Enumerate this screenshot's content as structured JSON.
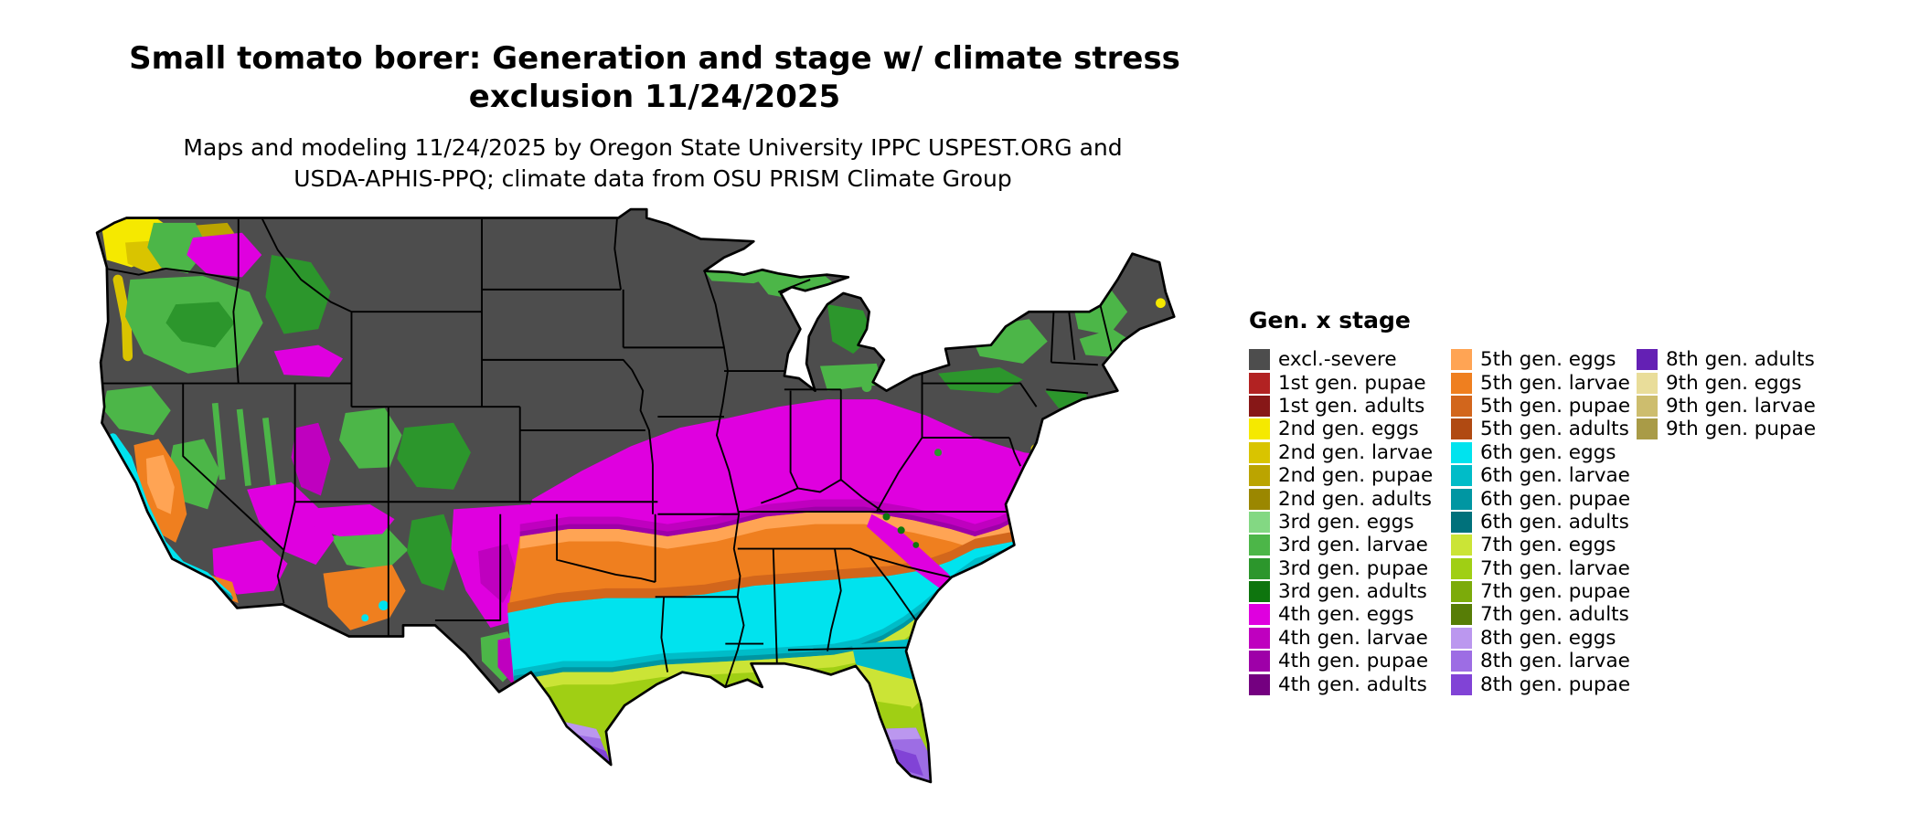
{
  "title": {
    "line1": "Small tomato borer: Generation and stage w/ climate stress",
    "line2": "exclusion 11/24/2025"
  },
  "subtitle": {
    "line1": "Maps and modeling 11/24/2025 by Oregon State University IPPC USPEST.ORG and",
    "line2": "USDA-APHIS-PPQ; climate data from OSU PRISM Climate Group"
  },
  "legend": {
    "title": "Gen. x stage",
    "columns": [
      [
        {
          "label": "excl.-severe",
          "key": "excl_severe"
        },
        {
          "label": "1st gen. pupae",
          "key": "g1_pupae"
        },
        {
          "label": "1st gen. adults",
          "key": "g1_adults"
        },
        {
          "label": "2nd gen. eggs",
          "key": "g2_eggs"
        },
        {
          "label": "2nd gen. larvae",
          "key": "g2_larvae"
        },
        {
          "label": "2nd gen. pupae",
          "key": "g2_pupae"
        },
        {
          "label": "2nd gen. adults",
          "key": "g2_adults"
        },
        {
          "label": "3rd gen. eggs",
          "key": "g3_eggs"
        },
        {
          "label": "3rd gen. larvae",
          "key": "g3_larvae"
        },
        {
          "label": "3rd gen. pupae",
          "key": "g3_pupae"
        },
        {
          "label": "3rd gen. adults",
          "key": "g3_adults"
        },
        {
          "label": "4th gen. eggs",
          "key": "g4_eggs"
        },
        {
          "label": "4th gen. larvae",
          "key": "g4_larvae"
        },
        {
          "label": "4th gen. pupae",
          "key": "g4_pupae"
        },
        {
          "label": "4th gen. adults",
          "key": "g4_adults"
        }
      ],
      [
        {
          "label": "5th gen. eggs",
          "key": "g5_eggs"
        },
        {
          "label": "5th gen. larvae",
          "key": "g5_larvae"
        },
        {
          "label": "5th gen. pupae",
          "key": "g5_pupae"
        },
        {
          "label": "5th gen. adults",
          "key": "g5_adults"
        },
        {
          "label": "6th gen. eggs",
          "key": "g6_eggs"
        },
        {
          "label": "6th gen. larvae",
          "key": "g6_larvae"
        },
        {
          "label": "6th gen. pupae",
          "key": "g6_pupae"
        },
        {
          "label": "6th gen. adults",
          "key": "g6_adults"
        },
        {
          "label": "7th gen. eggs",
          "key": "g7_eggs"
        },
        {
          "label": "7th gen. larvae",
          "key": "g7_larvae"
        },
        {
          "label": "7th gen. pupae",
          "key": "g7_pupae"
        },
        {
          "label": "7th gen. adults",
          "key": "g7_adults"
        },
        {
          "label": "8th gen. eggs",
          "key": "g8_eggs"
        },
        {
          "label": "8th gen. larvae",
          "key": "g8_larvae"
        },
        {
          "label": "8th gen. pupae",
          "key": "g8_pupae"
        }
      ],
      [
        {
          "label": "8th gen. adults",
          "key": "g8_adults"
        },
        {
          "label": "9th gen. eggs",
          "key": "g9_eggs"
        },
        {
          "label": "9th gen. larvae",
          "key": "g9_larvae"
        },
        {
          "label": "9th gen. pupae",
          "key": "g9_pupae"
        }
      ]
    ]
  },
  "palette": {
    "excl_severe": "#4d4d4d",
    "g1_pupae": "#b22222",
    "g1_adults": "#871717",
    "g2_eggs": "#f5e900",
    "g2_larvae": "#d9c400",
    "g2_pupae": "#bba400",
    "g2_adults": "#9b8700",
    "g3_eggs": "#83d883",
    "g3_larvae": "#4cb648",
    "g3_pupae": "#2c962c",
    "g3_adults": "#0e750e",
    "g4_eggs": "#df00df",
    "g4_larvae": "#bf00bf",
    "g4_pupae": "#9e00a8",
    "g4_adults": "#740080",
    "g5_eggs": "#ffa454",
    "g5_larvae": "#ef7f1f",
    "g5_pupae": "#d2661c",
    "g5_adults": "#b04a12",
    "g6_eggs": "#00e3ee",
    "g6_larvae": "#00bcc8",
    "g6_pupae": "#0096a2",
    "g6_adults": "#00717b",
    "g7_eggs": "#cbe436",
    "g7_larvae": "#a0cf14",
    "g7_pupae": "#7cab0a",
    "g7_adults": "#577d06",
    "g8_eggs": "#bb97ef",
    "g8_larvae": "#9d6de4",
    "g8_pupae": "#8143d6",
    "g8_adults": "#6420b4",
    "g9_eggs": "#e9dd9a",
    "g9_larvae": "#cdbd6e",
    "g9_pupae": "#a99b47"
  }
}
